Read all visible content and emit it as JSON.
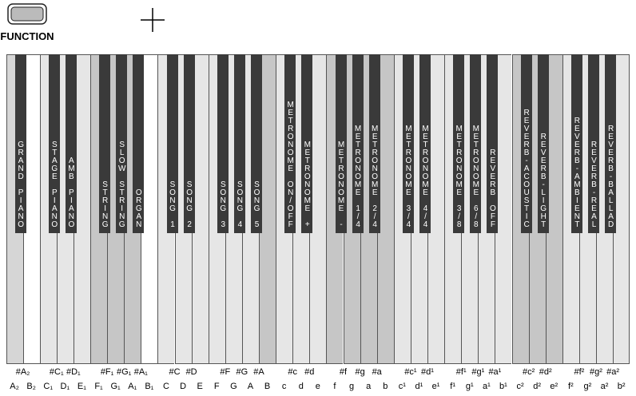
{
  "button": {
    "label": "FUNCTION"
  },
  "keyboard": {
    "white_keys": [
      "A₂",
      "B₂",
      "C₁",
      "D₁",
      "E₁",
      "F₁",
      "G₁",
      "A₁",
      "B₁",
      "C",
      "D",
      "E",
      "F",
      "G",
      "A",
      "B",
      "c",
      "d",
      "e",
      "f",
      "g",
      "a",
      "b",
      "c¹",
      "d¹",
      "e¹",
      "f¹",
      "g¹",
      "a¹",
      "b¹",
      "c²",
      "d²",
      "e²",
      "f²",
      "g²",
      "a²",
      "b²"
    ],
    "black_keys": [
      {
        "note": "#A₂",
        "function": "GRAND PIANO"
      },
      {
        "note": "#C₁",
        "function": "STAGE PIANO"
      },
      {
        "note": "#D₁",
        "function": "AMB PIANO"
      },
      {
        "note": "#F₁",
        "function": "STRING"
      },
      {
        "note": "#G₁",
        "function": "SLOW STRING"
      },
      {
        "note": "#A₁",
        "function": "ORGAN"
      },
      {
        "note": "#C",
        "function": "SONG 1"
      },
      {
        "note": "#D",
        "function": "SONG 2"
      },
      {
        "note": "#F",
        "function": "SONG 3"
      },
      {
        "note": "#G",
        "function": "SONG 4"
      },
      {
        "note": "#A",
        "function": "SONG 5"
      },
      {
        "note": "#c",
        "function": "METRONOME ON/OFF"
      },
      {
        "note": "#d",
        "function": "METRONOME +"
      },
      {
        "note": "#f",
        "function": "METRONOME -"
      },
      {
        "note": "#g",
        "function": "METRONOME 1/4"
      },
      {
        "note": "#a",
        "function": "METRONOME 2/4"
      },
      {
        "note": "#c¹",
        "function": "METRONOME 3/4"
      },
      {
        "note": "#d¹",
        "function": "METRONOME 4/4"
      },
      {
        "note": "#f¹",
        "function": "METRONOME 3/8"
      },
      {
        "note": "#g¹",
        "function": "METRONOME 6/8"
      },
      {
        "note": "#a¹",
        "function": "REVERB OFF"
      },
      {
        "note": "#c²",
        "function": "REVERB-ACOUSTIC"
      },
      {
        "note": "#d²",
        "function": "REVERB-LIGHT"
      },
      {
        "note": "#f²",
        "function": "REVERB-AMBIENT"
      },
      {
        "note": "#g²",
        "function": "REVERB-REAL"
      },
      {
        "note": "#a²",
        "function": "REVERB-BALLAD"
      }
    ]
  }
}
